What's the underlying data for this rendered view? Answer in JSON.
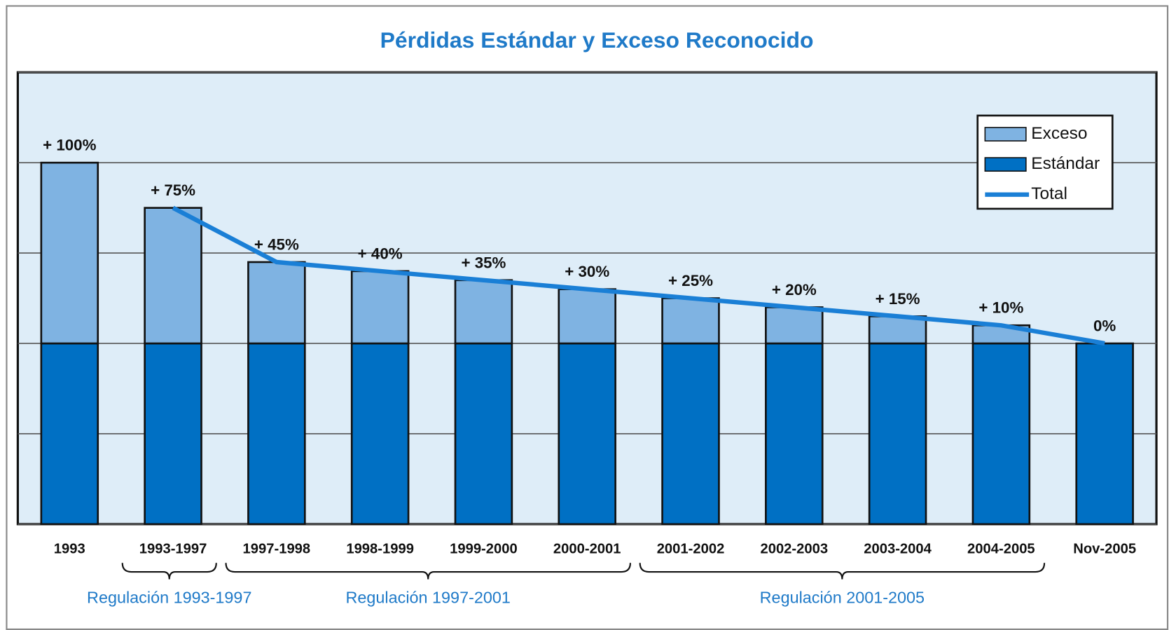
{
  "chart_data": {
    "type": "bar",
    "stacked": true,
    "title": "Pérdidas Estándar y Exceso Reconocido",
    "categories": [
      "1993",
      "1993-1997",
      "1997-1998",
      "1998-1999",
      "1999-2000",
      "2000-2001",
      "2001-2002",
      "2002-2003",
      "2003-2004",
      "2004-2005",
      "Nov-2005"
    ],
    "series": [
      {
        "name": "Exceso",
        "color": "#7fb3e2",
        "values": [
          100,
          75,
          45,
          40,
          35,
          30,
          25,
          20,
          15,
          10,
          0
        ],
        "value_labels": [
          "+ 100%",
          "+ 75%",
          "+ 45%",
          "+ 40%",
          "+ 35%",
          "+ 30%",
          "+ 25%",
          "+ 20%",
          "+ 15%",
          "+ 10%",
          "0%"
        ]
      },
      {
        "name": "Estándar",
        "color": "#0070c4",
        "values": [
          100,
          100,
          100,
          100,
          100,
          100,
          100,
          100,
          100,
          100,
          100
        ]
      },
      {
        "name": "Total",
        "type": "line",
        "color": "#1a7fd6",
        "values": [
          null,
          175,
          145,
          140,
          135,
          130,
          125,
          120,
          115,
          110,
          100
        ]
      }
    ],
    "ylim": [
      0,
      250
    ],
    "yticks": [
      0,
      50,
      100,
      150,
      200,
      250
    ],
    "grid": true,
    "legend": "top-right",
    "annotations": [
      "Regulación 1993-1997",
      "Regulación 1997-2001",
      "Regulación 2001-2005"
    ]
  }
}
